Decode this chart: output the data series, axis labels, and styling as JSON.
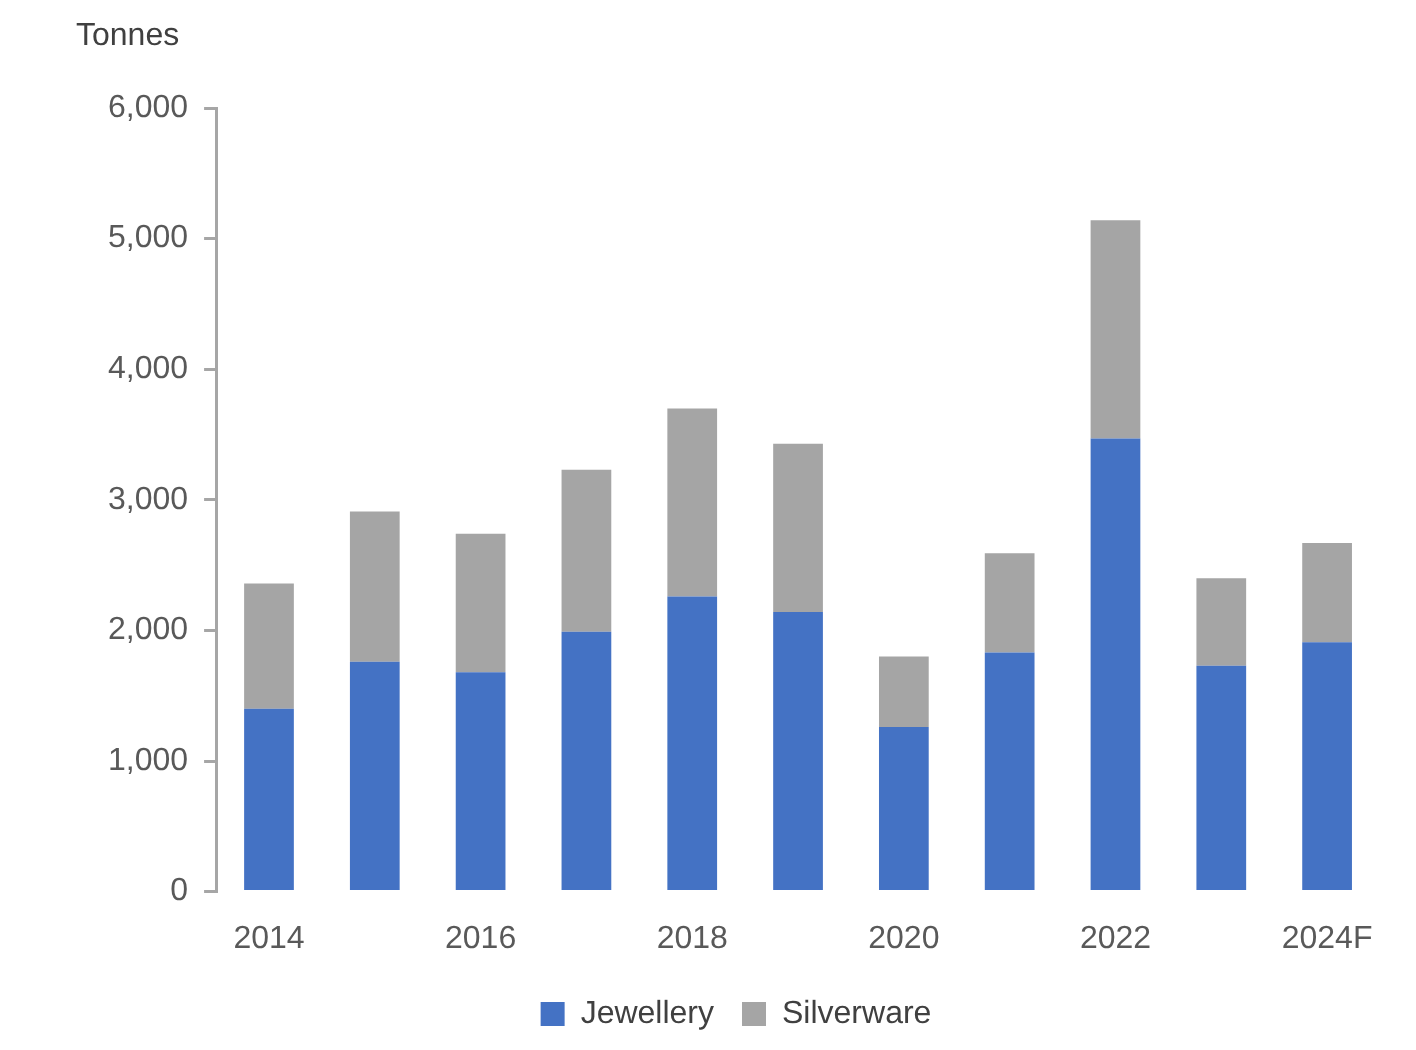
{
  "chart_data": {
    "type": "bar",
    "ylabel": "Tonnes",
    "stacked": true,
    "legend": "bottom",
    "categories": [
      "2014",
      null,
      "2016",
      null,
      "2018",
      null,
      "2020",
      null,
      "2022",
      null,
      "2024F"
    ],
    "series": [
      {
        "name": "Jewellery",
        "color": "#4472c4",
        "values": [
          1400,
          1760,
          1680,
          1990,
          2260,
          2140,
          1260,
          1830,
          3470,
          1730,
          1910
        ]
      },
      {
        "name": "Silverware",
        "color": "#a5a5a5",
        "values": [
          960,
          1150,
          1060,
          1240,
          1440,
          1290,
          540,
          760,
          1670,
          670,
          760
        ]
      }
    ],
    "ylim": [
      0,
      6000
    ],
    "yticks": [
      0,
      {
        "value": 1000,
        "label": "1,000"
      },
      {
        "value": 2000,
        "label": "2,000"
      },
      {
        "value": 3000,
        "label": "3,000"
      },
      {
        "value": 4000,
        "label": "4,000"
      },
      {
        "value": 5000,
        "label": "5,000"
      },
      {
        "value": 6000,
        "label": "6,000"
      }
    ]
  }
}
